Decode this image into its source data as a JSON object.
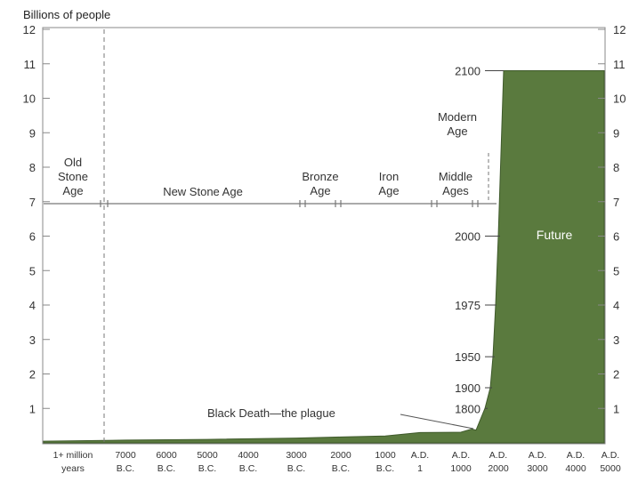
{
  "chart_data": {
    "type": "area",
    "title": "",
    "ylabel": "Billions of people",
    "xlabel": "",
    "ylim": [
      0,
      12
    ],
    "y_ticks": [
      1,
      2,
      3,
      4,
      5,
      6,
      7,
      8,
      9,
      10,
      11,
      12
    ],
    "categories": [
      [
        "1+ million",
        "years"
      ],
      [
        "7000",
        "B.C."
      ],
      [
        "6000",
        "B.C."
      ],
      [
        "5000",
        "B.C."
      ],
      [
        "4000",
        "B.C."
      ],
      [
        "3000",
        "B.C."
      ],
      [
        "2000",
        "B.C."
      ],
      [
        "1000",
        "B.C."
      ],
      [
        "A.D.",
        "1"
      ],
      [
        "A.D.",
        "1000"
      ],
      [
        "A.D.",
        "2000"
      ],
      [
        "A.D.",
        "3000"
      ],
      [
        "A.D.",
        "4000"
      ],
      [
        "A.D.",
        "5000"
      ]
    ],
    "series": [
      {
        "name": "",
        "color": "#5a7a3e",
        "points": [
          {
            "x": "1+ million years",
            "y": 0.05
          },
          {
            "x": "7000 B.C.",
            "y": 0.08
          },
          {
            "x": "5000 B.C.",
            "y": 0.1
          },
          {
            "x": "3000 B.C.",
            "y": 0.14
          },
          {
            "x": "2000 B.C.",
            "y": 0.17
          },
          {
            "x": "1000 B.C.",
            "y": 0.2
          },
          {
            "x": "A.D. 1",
            "y": 0.3
          },
          {
            "x": "A.D. 1000",
            "y": 0.31
          },
          {
            "x": "A.D. 1300",
            "y": 0.4
          },
          {
            "x": "A.D. 1400",
            "y": 0.37
          },
          {
            "x": "A.D. 1800",
            "y": 1.0
          },
          {
            "x": "A.D. 1900",
            "y": 1.6
          },
          {
            "x": "A.D. 1950",
            "y": 2.5
          },
          {
            "x": "A.D. 1975",
            "y": 4.0
          },
          {
            "x": "A.D. 2000",
            "y": 6.0
          },
          {
            "x": "A.D. 2100",
            "y": 10.8
          },
          {
            "x": "A.D. 3000",
            "y": 10.8
          },
          {
            "x": "A.D. 5000",
            "y": 10.8
          }
        ]
      }
    ],
    "eras": [
      "Old Stone Age",
      "New Stone Age",
      "Bronze Age",
      "Iron Age",
      "Middle Ages",
      "Modern Age"
    ],
    "year_annotations": [
      {
        "label": "2100",
        "y": 10.8
      },
      {
        "label": "2000",
        "y": 6.0
      },
      {
        "label": "1975",
        "y": 4.0
      },
      {
        "label": "1950",
        "y": 2.5
      },
      {
        "label": "1900",
        "y": 1.6
      },
      {
        "label": "1800",
        "y": 1.0
      }
    ],
    "annotations": {
      "plague": "Black Death—the plague",
      "future": "Future"
    },
    "grid": false
  }
}
